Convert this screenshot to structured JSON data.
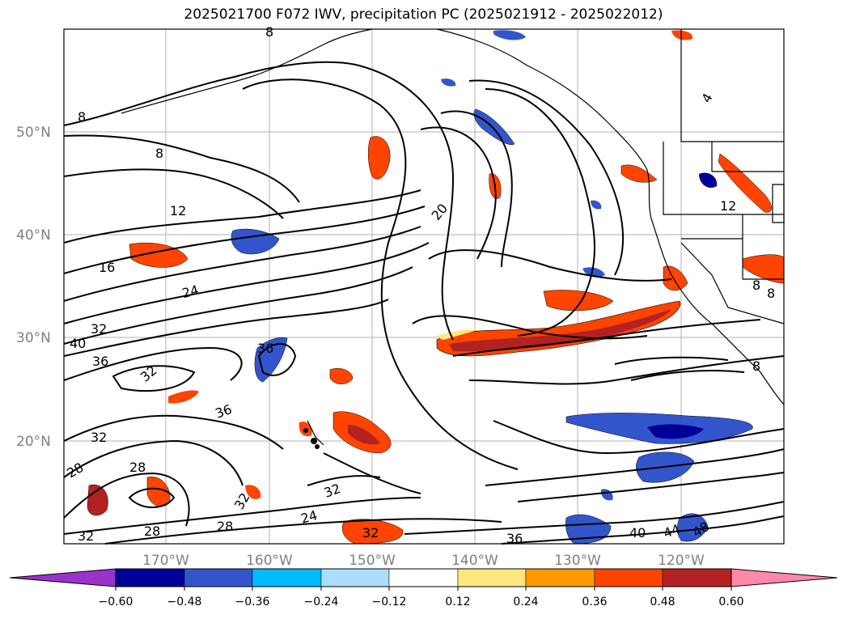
{
  "title": "2025021700 F072 IWV, precipitation PC (2025021912 - 2025022012)",
  "map": {
    "lat_labels": [
      "50°N",
      "40°N",
      "30°N",
      "20°N"
    ],
    "lon_labels": [
      "170°W",
      "160°W",
      "150°W",
      "140°W",
      "130°W",
      "120°W"
    ]
  },
  "contour_labels": [
    "8",
    "8",
    "8",
    "12",
    "12",
    "16",
    "20",
    "24",
    "24",
    "28",
    "28",
    "28",
    "28",
    "32",
    "32",
    "32",
    "32",
    "32",
    "32",
    "32",
    "36",
    "36",
    "36",
    "36",
    "40",
    "40",
    "44",
    "48",
    "8",
    "8",
    "8",
    "4"
  ],
  "colorbar": {
    "ticks": [
      "−0.60",
      "−0.48",
      "−0.36",
      "−0.24",
      "−0.12",
      "0.12",
      "0.24",
      "0.36",
      "0.48",
      "0.60"
    ],
    "colors": [
      "#9933cc",
      "#000099",
      "#3355cc",
      "#00bbff",
      "#aaddff",
      "#ffffff",
      "#ffe680",
      "#ff9900",
      "#ff4400",
      "#b22222",
      "#ff88aa"
    ]
  }
}
